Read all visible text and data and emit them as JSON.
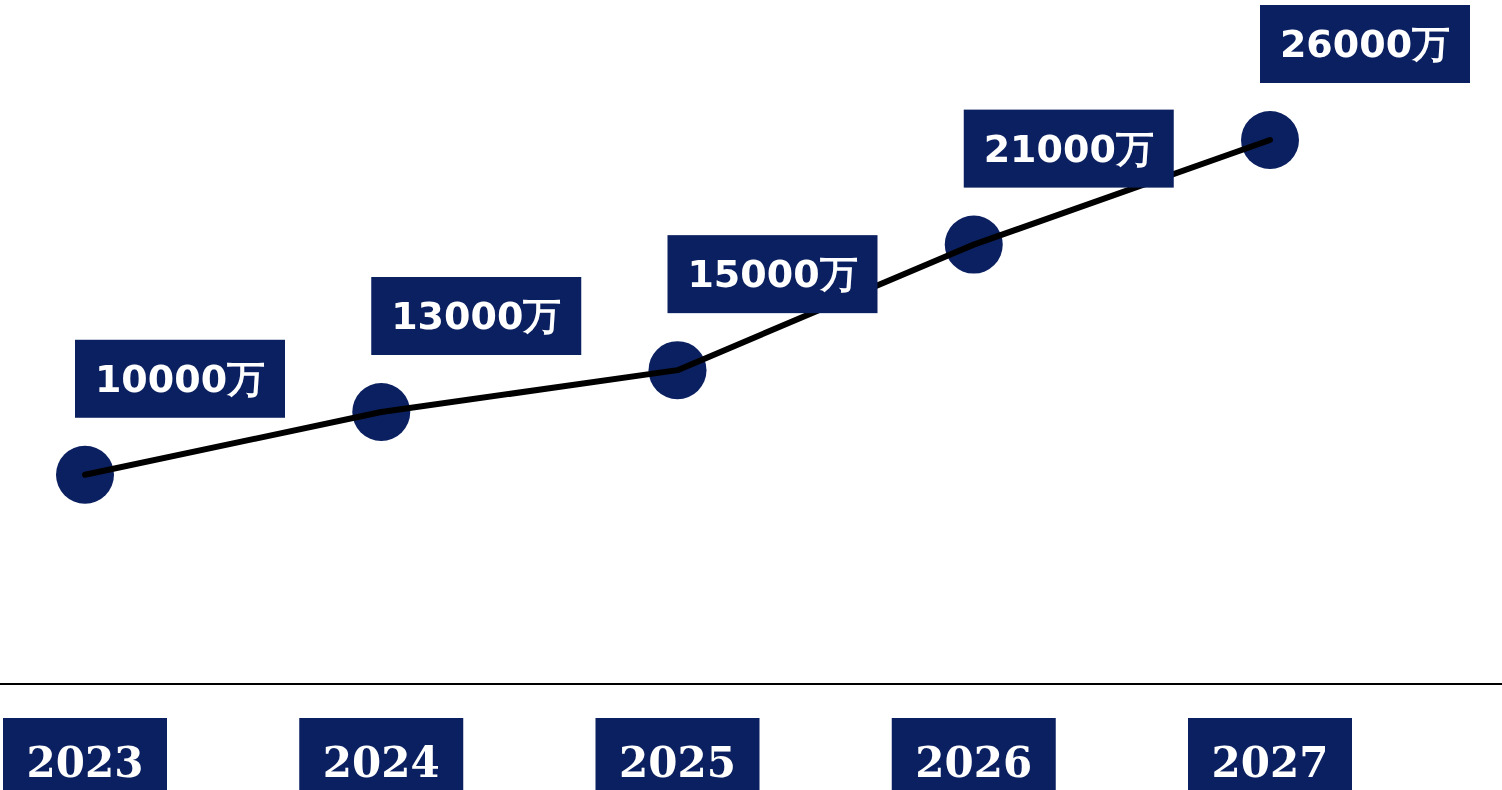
{
  "chart_data": {
    "type": "line",
    "categories": [
      "2023",
      "2024",
      "2025",
      "2026",
      "2027"
    ],
    "series": [
      {
        "color": "#000000",
        "values": [
          10000,
          13000,
          15000,
          21000,
          26000
        ],
        "marker": "none"
      },
      {
        "type": "scatter",
        "color": "#0b2060",
        "values": [
          10000,
          13000,
          15000,
          21000,
          26000
        ],
        "marker": "circle",
        "value_labels": [
          "10000万",
          "13000万",
          "15000万",
          "21000万",
          "26000万"
        ]
      }
    ],
    "tick_labels": "x",
    "line_style": "solid"
  }
}
